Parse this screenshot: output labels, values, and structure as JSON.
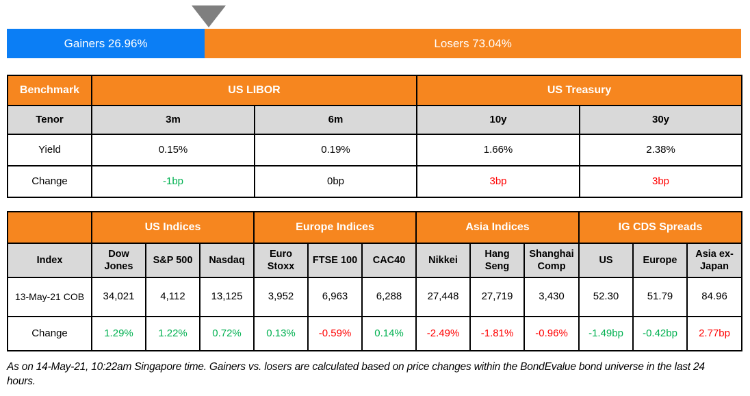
{
  "colors": {
    "gainers_blue": "#0b7ef5",
    "losers_orange": "#f6861f",
    "header_orange": "#f6861f",
    "subheader_gray": "#d9d9d9",
    "positive_green": "#00b050",
    "negative_red": "#ff0000",
    "marker_gray": "#7f7f7f"
  },
  "gainers_losers_bar": {
    "gainers_label": "Gainers 26.96%",
    "losers_label": "Losers 73.04%",
    "gainers_pct": 26.96,
    "losers_pct": 73.04
  },
  "benchmark_table": {
    "corner_label": "Benchmark",
    "groups": [
      "US LIBOR",
      "US Treasury"
    ],
    "tenor_label": "Tenor",
    "tenors": [
      "3m",
      "6m",
      "10y",
      "30y"
    ],
    "yield_label": "Yield",
    "yields": [
      "0.15%",
      "0.19%",
      "1.66%",
      "2.38%"
    ],
    "change_label": "Change",
    "change_values": [
      "-1bp",
      "0bp",
      "3bp",
      "3bp"
    ],
    "change_colors": [
      "green",
      "black",
      "red",
      "red"
    ]
  },
  "indices_table": {
    "groups": [
      "US Indices",
      "Europe Indices",
      "Asia Indices",
      "IG CDS Spreads"
    ],
    "index_label": "Index",
    "columns": [
      "Dow Jones",
      "S&P 500",
      "Nasdaq",
      "Euro Stoxx",
      "FTSE 100",
      "CAC40",
      "Nikkei",
      "Hang Seng",
      "Shanghai Comp",
      "US",
      "Europe",
      "Asia ex-Japan"
    ],
    "row_label": "13-May-21 COB",
    "values": [
      "34,021",
      "4,112",
      "13,125",
      "3,952",
      "6,963",
      "6,288",
      "27,448",
      "27,719",
      "3,430",
      "52.30",
      "51.79",
      "84.96"
    ],
    "change_label": "Change",
    "change_values": [
      "1.29%",
      "1.22%",
      "0.72%",
      "0.13%",
      "-0.59%",
      "0.14%",
      "-2.49%",
      "-1.81%",
      "-0.96%",
      "-1.49bp",
      "-0.42bp",
      "2.77bp"
    ],
    "change_colors": [
      "green",
      "green",
      "green",
      "green",
      "red",
      "green",
      "red",
      "red",
      "red",
      "green",
      "green",
      "red"
    ]
  },
  "footnote": "As on 14-May-21, 10:22am Singapore time. Gainers vs. losers are calculated based on price changes within the BondEvalue bond universe in the last 24 hours.",
  "chart_data": [
    {
      "type": "bar",
      "subtype": "horizontal-stacked-100pct",
      "title": "Gainers vs Losers",
      "categories": [
        "Gainers",
        "Losers"
      ],
      "values": [
        26.96,
        73.04
      ],
      "unit": "percent",
      "colors": [
        "#0b7ef5",
        "#f6861f"
      ],
      "annotations": [
        "Gainers 26.96%",
        "Losers 73.04%",
        "gray triangle marker at gainers/losers boundary"
      ]
    },
    {
      "type": "table",
      "title": "Benchmark",
      "columns": [
        "Tenor",
        "US LIBOR 3m",
        "US LIBOR 6m",
        "US Treasury 10y",
        "US Treasury 30y"
      ],
      "rows": [
        [
          "Yield",
          "0.15%",
          "0.19%",
          "1.66%",
          "2.38%"
        ],
        [
          "Change",
          "-1bp",
          "0bp",
          "3bp",
          "3bp"
        ]
      ]
    },
    {
      "type": "table",
      "title": "Indices and IG CDS Spreads",
      "columns": [
        "Index",
        "Dow Jones",
        "S&P 500",
        "Nasdaq",
        "Euro Stoxx",
        "FTSE 100",
        "CAC40",
        "Nikkei",
        "Hang Seng",
        "Shanghai Comp",
        "US",
        "Europe",
        "Asia ex-Japan"
      ],
      "rows": [
        [
          "13-May-21 COB",
          "34,021",
          "4,112",
          "13,125",
          "3,952",
          "6,963",
          "6,288",
          "27,448",
          "27,719",
          "3,430",
          "52.30",
          "51.79",
          "84.96"
        ],
        [
          "Change",
          "1.29%",
          "1.22%",
          "0.72%",
          "0.13%",
          "-0.59%",
          "0.14%",
          "-2.49%",
          "-1.81%",
          "-0.96%",
          "-1.49bp",
          "-0.42bp",
          "2.77bp"
        ]
      ]
    }
  ]
}
